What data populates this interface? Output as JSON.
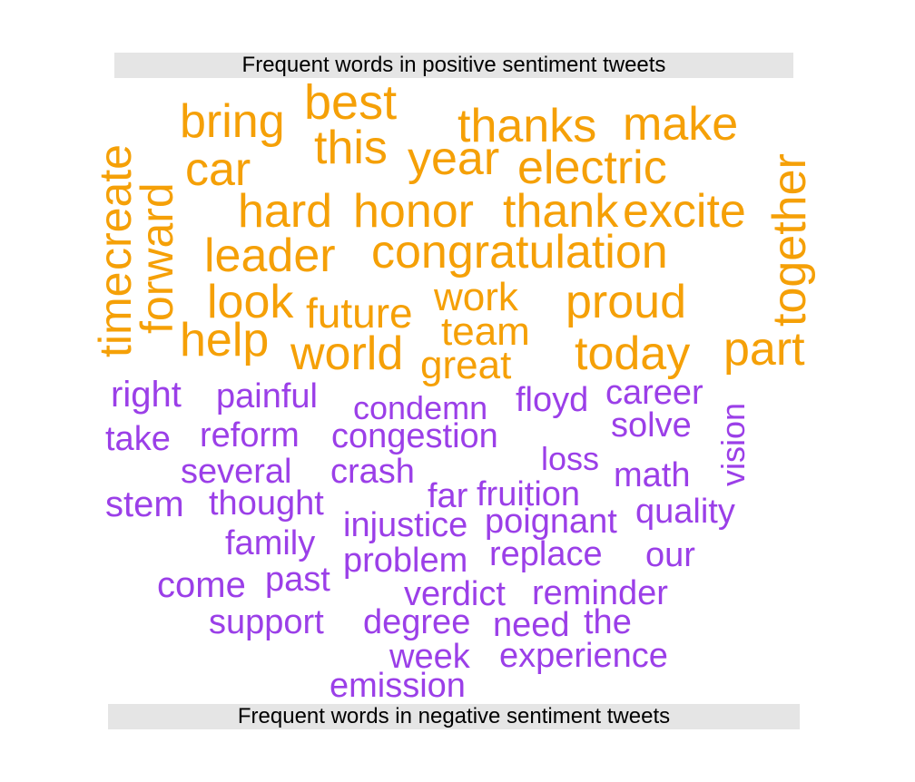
{
  "title_positive": "Frequent words in positive sentiment tweets",
  "title_negative": "Frequent words in negative sentiment tweets",
  "colors": {
    "positive": "#f5a007",
    "negative": "#9b3fe8",
    "banner": "#e5e5e5"
  },
  "positive_words": {
    "best": "best",
    "bring": "bring",
    "this": "this",
    "thanks": "thanks",
    "make": "make",
    "car": "car",
    "year": "year",
    "electric": "electric",
    "create": "create",
    "forward": "forward",
    "together": "together",
    "hard": "hard",
    "honor": "honor",
    "thank": "thank",
    "excite": "excite",
    "leader": "leader",
    "congratulation": "congratulation",
    "time": "time",
    "look": "look",
    "future": "future",
    "work": "work",
    "proud": "proud",
    "team": "team",
    "help": "help",
    "world": "world",
    "great": "great",
    "today": "today",
    "part": "part"
  },
  "negative_words": {
    "right": "right",
    "painful": "painful",
    "condemn": "condemn",
    "floyd": "floyd",
    "career": "career",
    "vision": "vision",
    "take": "take",
    "reform": "reform",
    "congestion": "congestion",
    "solve": "solve",
    "loss": "loss",
    "several": "several",
    "crash": "crash",
    "math": "math",
    "stem": "stem",
    "thought": "thought",
    "far": "far",
    "fruition": "fruition",
    "injustice": "injustice",
    "poignant": "poignant",
    "quality": "quality",
    "family": "family",
    "problem": "problem",
    "replace": "replace",
    "our": "our",
    "come": "come",
    "past": "past",
    "verdict": "verdict",
    "reminder": "reminder",
    "support": "support",
    "degree": "degree",
    "need": "need",
    "the": "the",
    "week": "week",
    "experience": "experience",
    "emission": "emission"
  }
}
